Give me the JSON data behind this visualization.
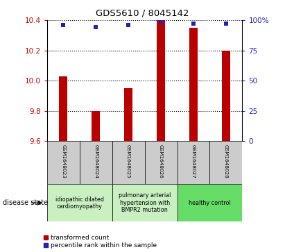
{
  "title": "GDS5610 / 8045142",
  "samples": [
    "GSM1648023",
    "GSM1648024",
    "GSM1648025",
    "GSM1648026",
    "GSM1648027",
    "GSM1648028"
  ],
  "red_values": [
    10.03,
    9.8,
    9.95,
    10.4,
    10.35,
    10.2
  ],
  "blue_values": [
    96,
    94,
    96,
    99,
    97,
    97
  ],
  "ylim_left": [
    9.6,
    10.4
  ],
  "ylim_right": [
    0,
    100
  ],
  "yticks_left": [
    9.6,
    9.8,
    10.0,
    10.2,
    10.4
  ],
  "yticks_right": [
    0,
    25,
    50,
    75,
    100
  ],
  "disease_groups": [
    {
      "label": "idiopathic dilated\ncardiomyopathy",
      "color": "#c8f0c0",
      "start": 0,
      "end": 2
    },
    {
      "label": "pulmonary arterial\nhypertension with\nBMPR2 mutation",
      "color": "#c8f0c0",
      "start": 2,
      "end": 4
    },
    {
      "label": "healthy control",
      "color": "#66dd66",
      "start": 4,
      "end": 6
    }
  ],
  "bar_color": "#bb0000",
  "dot_color": "#2222bb",
  "bar_width": 0.25,
  "dot_size": 22,
  "legend_red_label": "transformed count",
  "legend_blue_label": "percentile rank within the sample",
  "disease_state_label": "disease state",
  "left_tick_color": "#cc0000",
  "right_tick_color": "#2222bb",
  "grid_color": "black",
  "grid_alpha": 0.6,
  "grid_linestyle": ":"
}
